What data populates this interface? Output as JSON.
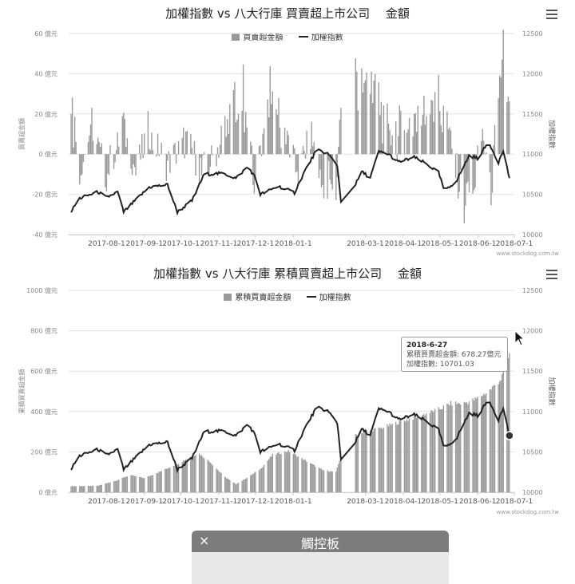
{
  "chart1": {
    "title": "加權指數 vs 八大行庫 買賣超上市公司 　金額",
    "legend": {
      "bar": "買賣超金額",
      "line": "加權指數"
    },
    "y_left_label": "買賣超金額",
    "y_right_label": "加權指數",
    "y_left_ticks": [
      "60 億元",
      "40 億元",
      "20 億元",
      "0 億元",
      "-20 億元",
      "-40 億元"
    ],
    "y_right_ticks": [
      "12500",
      "12000",
      "11500",
      "11000",
      "10500",
      "10000"
    ],
    "x_ticks": [
      "2017-08-1",
      "2017-09-1",
      "2017-10-1",
      "2017-11-1",
      "2017-12-1",
      "2018-01-1",
      "2018-03-1",
      "2018-04-1",
      "2018-05-1",
      "2018-06-1",
      "2018-07-1"
    ],
    "credit": "www.stockdog.com.tw"
  },
  "chart2": {
    "title": "加權指數 vs 八大行庫 累積買賣超上市公司 　金額",
    "legend": {
      "bar": "累積買賣超金額",
      "line": "加權指數"
    },
    "y_left_label": "累積買賣超金額",
    "y_right_label": "加權指數",
    "y_left_ticks": [
      "1000 億元",
      "800 億元",
      "600 億元",
      "400 億元",
      "200 億元",
      "0 億元"
    ],
    "y_right_ticks": [
      "12500",
      "12000",
      "11500",
      "11000",
      "10500",
      "10000"
    ],
    "x_ticks": [
      "2017-08-1",
      "2017-09-1",
      "2017-10-1",
      "2017-11-1",
      "2017-12-1",
      "2018-01-1",
      "2018-03-1",
      "2018-04-1",
      "2018-05-1",
      "2018-06-1",
      "2018-07-1"
    ],
    "credit": "www.stockdog.com.tw",
    "tooltip": {
      "date": "2018-6-27",
      "row1": "累積買賣超金額: 678.27億元",
      "row2": "加權指數: 10701.03"
    }
  },
  "panel": {
    "title": "觸控板",
    "close": "×"
  },
  "colors": {
    "bar": "#9a9a9a",
    "line": "#222222",
    "grid": "#e2e2e2"
  },
  "chart_data": [
    {
      "type": "bar+line",
      "title": "加權指數 vs 八大行庫 買賣超上市公司 　金額",
      "x_range": [
        "2017-07-01",
        "2018-07-01"
      ],
      "ylim_left": [
        -40,
        60
      ],
      "ylim_right": [
        10000,
        12500
      ],
      "series": [
        {
          "name": "買賣超金額",
          "type": "bar",
          "unit": "億元",
          "keypoints": [
            [
              "2017-07-03",
              30
            ],
            [
              "2017-07-10",
              -8
            ],
            [
              "2017-07-20",
              12
            ],
            [
              "2017-08-01",
              -10
            ],
            [
              "2017-08-15",
              14
            ],
            [
              "2017-08-25",
              -8
            ],
            [
              "2017-09-05",
              12
            ],
            [
              "2017-09-20",
              -6
            ],
            [
              "2017-10-05",
              8
            ],
            [
              "2017-10-20",
              -12
            ],
            [
              "2017-11-05",
              10
            ],
            [
              "2017-11-20",
              30
            ],
            [
              "2017-12-01",
              -14
            ],
            [
              "2017-12-10",
              28
            ],
            [
              "2017-12-20",
              20
            ],
            [
              "2018-01-05",
              -10
            ],
            [
              "2018-01-15",
              10
            ],
            [
              "2018-01-25",
              -14
            ],
            [
              "2018-02-05",
              -20
            ],
            [
              "2018-02-10",
              46
            ],
            [
              "2018-02-15",
              30
            ],
            [
              "2018-02-25",
              40
            ],
            [
              "2018-03-10",
              28
            ],
            [
              "2018-03-20",
              10
            ],
            [
              "2018-04-01",
              12
            ],
            [
              "2018-04-15",
              20
            ],
            [
              "2018-04-25",
              26
            ],
            [
              "2018-05-05",
              20
            ],
            [
              "2018-05-20",
              -24
            ],
            [
              "2018-05-28",
              -18
            ],
            [
              "2018-06-05",
              12
            ],
            [
              "2018-06-12",
              -20
            ],
            [
              "2018-06-18",
              34
            ],
            [
              "2018-06-22",
              43
            ],
            [
              "2018-06-27",
              18
            ]
          ]
        },
        {
          "name": "加權指數",
          "type": "line",
          "keypoints": [
            [
              "2017-07-03",
              10290
            ],
            [
              "2017-07-10",
              10450
            ],
            [
              "2017-07-25",
              10530
            ],
            [
              "2017-08-01",
              10460
            ],
            [
              "2017-08-10",
              10530
            ],
            [
              "2017-08-15",
              10280
            ],
            [
              "2017-08-25",
              10430
            ],
            [
              "2017-09-05",
              10590
            ],
            [
              "2017-09-20",
              10620
            ],
            [
              "2017-09-28",
              10280
            ],
            [
              "2017-10-10",
              10420
            ],
            [
              "2017-10-20",
              10750
            ],
            [
              "2017-11-05",
              10760
            ],
            [
              "2017-11-15",
              10700
            ],
            [
              "2017-11-25",
              10850
            ],
            [
              "2017-12-01",
              10700
            ],
            [
              "2017-12-05",
              10500
            ],
            [
              "2017-12-20",
              10600
            ],
            [
              "2018-01-02",
              10520
            ],
            [
              "2018-01-10",
              10780
            ],
            [
              "2018-01-20",
              11050
            ],
            [
              "2018-01-29",
              11010
            ],
            [
              "2018-02-06",
              10860
            ],
            [
              "2018-02-09",
              10420
            ],
            [
              "2018-02-15",
              10440
            ],
            [
              "2018-02-26",
              10780
            ],
            [
              "2018-03-05",
              10710
            ],
            [
              "2018-03-12",
              11030
            ],
            [
              "2018-03-20",
              11000
            ],
            [
              "2018-03-28",
              10900
            ],
            [
              "2018-04-10",
              10960
            ],
            [
              "2018-04-20",
              10880
            ],
            [
              "2018-04-30",
              10770
            ],
            [
              "2018-05-05",
              10530
            ],
            [
              "2018-05-15",
              10680
            ],
            [
              "2018-05-25",
              10980
            ],
            [
              "2018-06-01",
              10950
            ],
            [
              "2018-06-10",
              11150
            ],
            [
              "2018-06-18",
              10900
            ],
            [
              "2018-06-22",
              11040
            ],
            [
              "2018-06-27",
              10701.03
            ]
          ]
        }
      ],
      "xlabel": "",
      "ylabel_left": "買賣超金額",
      "ylabel_right": "加權指數"
    },
    {
      "type": "bar+line",
      "title": "加權指數 vs 八大行庫 累積買賣超上市公司 　金額",
      "x_range": [
        "2017-07-01",
        "2018-07-01"
      ],
      "ylim_left": [
        0,
        1000
      ],
      "ylim_right": [
        10000,
        12500
      ],
      "series": [
        {
          "name": "累積買賣超金額",
          "type": "bar",
          "unit": "億元",
          "keypoints": [
            [
              "2017-07-03",
              30
            ],
            [
              "2017-07-25",
              32
            ],
            [
              "2017-08-10",
              60
            ],
            [
              "2017-08-20",
              85
            ],
            [
              "2017-09-01",
              70
            ],
            [
              "2017-09-15",
              105
            ],
            [
              "2017-10-01",
              150
            ],
            [
              "2017-10-15",
              195
            ],
            [
              "2017-10-25",
              150
            ],
            [
              "2017-11-05",
              80
            ],
            [
              "2017-11-15",
              40
            ],
            [
              "2017-11-25",
              75
            ],
            [
              "2017-12-05",
              115
            ],
            [
              "2017-12-15",
              185
            ],
            [
              "2017-12-28",
              205
            ],
            [
              "2018-01-10",
              160
            ],
            [
              "2018-01-25",
              110
            ],
            [
              "2018-02-05",
              100
            ],
            [
              "2018-02-10",
              200
            ],
            [
              "2018-02-15",
              265
            ],
            [
              "2018-02-28",
              300
            ],
            [
              "2018-03-15",
              320
            ],
            [
              "2018-03-30",
              350
            ],
            [
              "2018-04-15",
              380
            ],
            [
              "2018-04-30",
              410
            ],
            [
              "2018-05-10",
              440
            ],
            [
              "2018-05-20",
              440
            ],
            [
              "2018-05-30",
              460
            ],
            [
              "2018-06-10",
              500
            ],
            [
              "2018-06-20",
              560
            ],
            [
              "2018-06-27",
              678.27
            ]
          ]
        },
        {
          "name": "加權指數",
          "type": "line",
          "keypoints": [
            [
              "2017-07-03",
              10290
            ],
            [
              "2017-07-10",
              10450
            ],
            [
              "2017-07-25",
              10530
            ],
            [
              "2017-08-01",
              10460
            ],
            [
              "2017-08-10",
              10530
            ],
            [
              "2017-08-15",
              10280
            ],
            [
              "2017-08-25",
              10430
            ],
            [
              "2017-09-05",
              10590
            ],
            [
              "2017-09-20",
              10620
            ],
            [
              "2017-09-28",
              10280
            ],
            [
              "2017-10-10",
              10420
            ],
            [
              "2017-10-20",
              10750
            ],
            [
              "2017-11-05",
              10760
            ],
            [
              "2017-11-15",
              10700
            ],
            [
              "2017-11-25",
              10850
            ],
            [
              "2017-12-01",
              10700
            ],
            [
              "2017-12-05",
              10500
            ],
            [
              "2017-12-20",
              10600
            ],
            [
              "2018-01-02",
              10520
            ],
            [
              "2018-01-10",
              10780
            ],
            [
              "2018-01-20",
              11050
            ],
            [
              "2018-01-29",
              11010
            ],
            [
              "2018-02-06",
              10860
            ],
            [
              "2018-02-09",
              10420
            ],
            [
              "2018-02-15",
              10440
            ],
            [
              "2018-02-26",
              10780
            ],
            [
              "2018-03-05",
              10710
            ],
            [
              "2018-03-12",
              11030
            ],
            [
              "2018-03-20",
              11000
            ],
            [
              "2018-03-28",
              10900
            ],
            [
              "2018-04-10",
              10960
            ],
            [
              "2018-04-20",
              10880
            ],
            [
              "2018-04-30",
              10770
            ],
            [
              "2018-05-05",
              10530
            ],
            [
              "2018-05-15",
              10680
            ],
            [
              "2018-05-25",
              10980
            ],
            [
              "2018-06-01",
              10950
            ],
            [
              "2018-06-10",
              11150
            ],
            [
              "2018-06-18",
              10900
            ],
            [
              "2018-06-22",
              11040
            ],
            [
              "2018-06-27",
              10701.03
            ]
          ]
        }
      ],
      "xlabel": "",
      "ylabel_left": "累積買賣超金額",
      "ylabel_right": "加權指數"
    }
  ]
}
